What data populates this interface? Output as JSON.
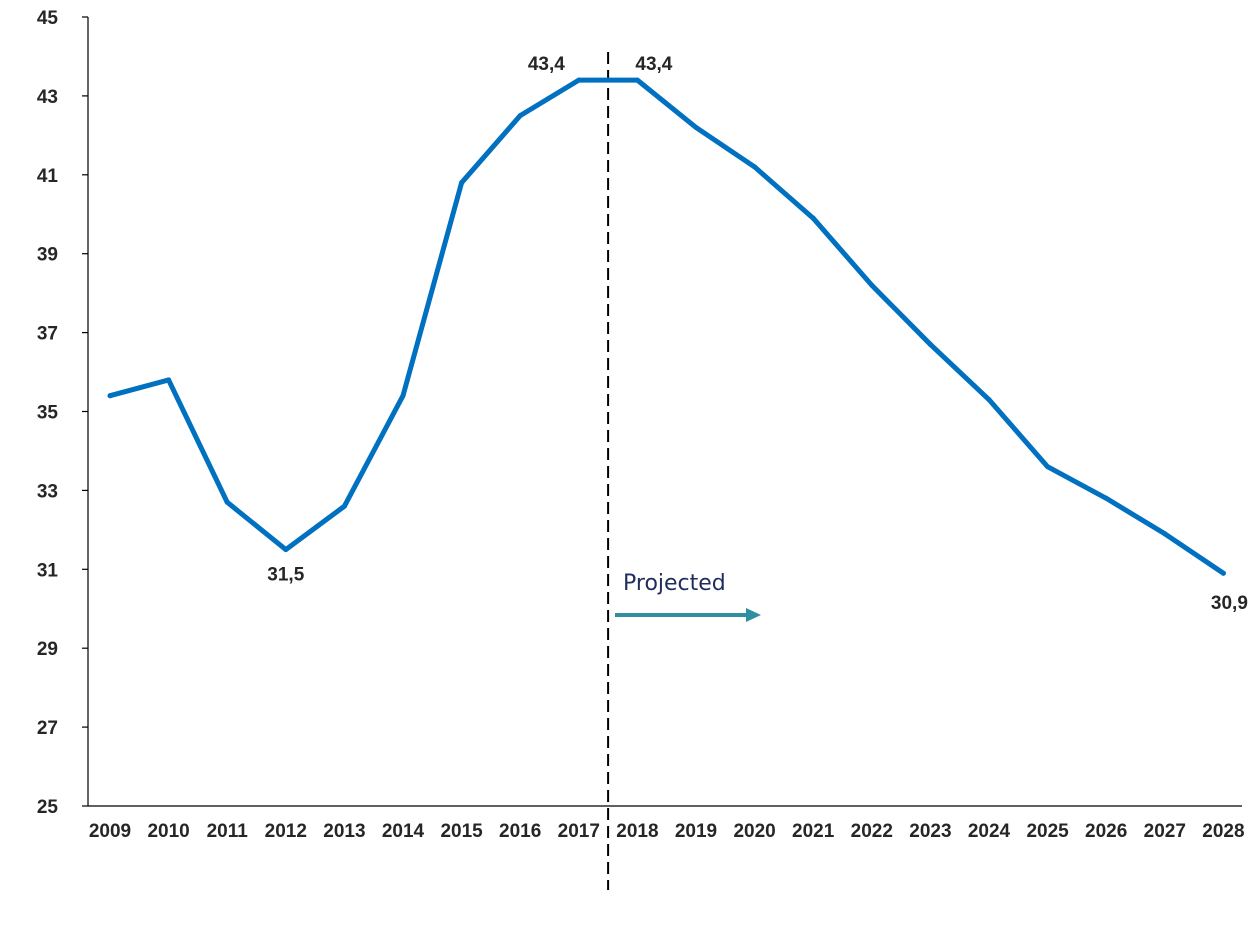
{
  "chart_data": {
    "type": "line",
    "title": "",
    "xlabel": "",
    "ylabel": "",
    "x": [
      "2009",
      "2010",
      "2011",
      "2012",
      "2013",
      "2014",
      "2015",
      "2016",
      "2017",
      "2018",
      "2019",
      "2020",
      "2021",
      "2022",
      "2023",
      "2024",
      "2025",
      "2026",
      "2027",
      "2028"
    ],
    "series": [
      {
        "values": [
          35.4,
          35.8,
          32.7,
          31.5,
          32.6,
          35.4,
          40.8,
          42.5,
          43.4,
          43.4,
          42.2,
          41.2,
          39.9,
          38.2,
          36.7,
          35.3,
          33.6,
          32.8,
          31.9,
          30.9
        ],
        "color": "#0070C0"
      }
    ],
    "ylim": [
      25,
      45
    ],
    "yticks": [
      25,
      27,
      29,
      31,
      33,
      35,
      37,
      39,
      41,
      43,
      45
    ],
    "grid": false,
    "legend": "none",
    "data_labels": [
      {
        "x": "2012",
        "text": "31,5",
        "position": "below"
      },
      {
        "x": "2017",
        "text": "43,4",
        "position": "left"
      },
      {
        "x": "2018",
        "text": "43,4",
        "position": "right"
      },
      {
        "x": "2028",
        "text": "30,9",
        "position": "below"
      }
    ],
    "divider": {
      "between": [
        "2017",
        "2018"
      ],
      "style": "dashed"
    },
    "annotation": {
      "text": "Projected",
      "arrow": "right",
      "color": "#2E8FA3"
    }
  }
}
